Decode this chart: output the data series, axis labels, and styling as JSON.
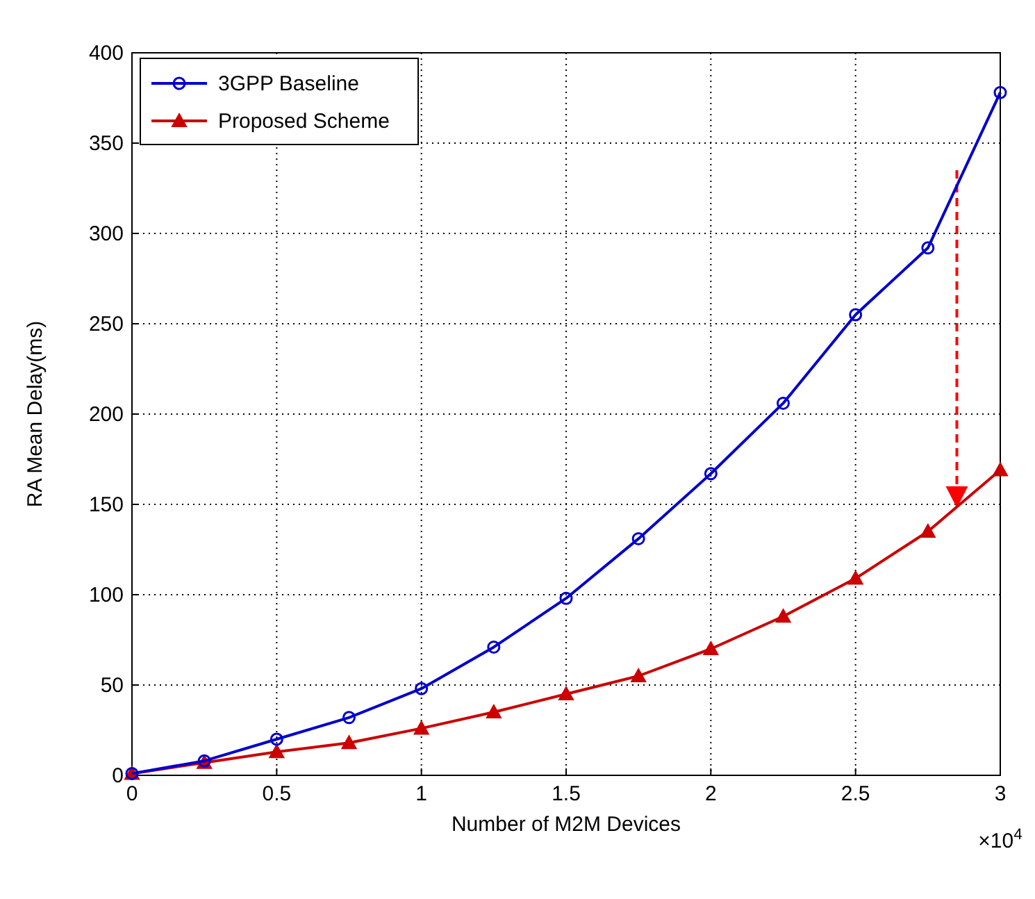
{
  "chart_data": {
    "type": "line",
    "xlabel": "Number of M2M Devices",
    "ylabel": "RA Mean Delay(ms)",
    "x": [
      0,
      0.25,
      0.5,
      0.75,
      1,
      1.25,
      1.5,
      1.75,
      2,
      2.25,
      2.5,
      2.75,
      3
    ],
    "series": [
      {
        "name": "3GPP Baseline",
        "color": "#0000cc",
        "marker": "circle",
        "values": [
          1,
          8,
          20,
          32,
          48,
          71,
          98,
          131,
          167,
          206,
          255,
          292,
          378
        ]
      },
      {
        "name": "Proposed Scheme",
        "color": "#cc0000",
        "marker": "triangle",
        "values": [
          1,
          7,
          13,
          18,
          26,
          35,
          45,
          55,
          70,
          88,
          109,
          135,
          169
        ]
      }
    ],
    "xlim": [
      0,
      3
    ],
    "xticks": [
      0,
      0.5,
      1,
      1.5,
      2,
      2.5,
      3
    ],
    "ylim": [
      0,
      400
    ],
    "yticks": [
      0,
      50,
      100,
      150,
      200,
      250,
      300,
      350,
      400
    ],
    "grid": true,
    "legend": "top left",
    "line_style": "solid",
    "annotations": [
      "×10$^{4}$"
    ]
  }
}
